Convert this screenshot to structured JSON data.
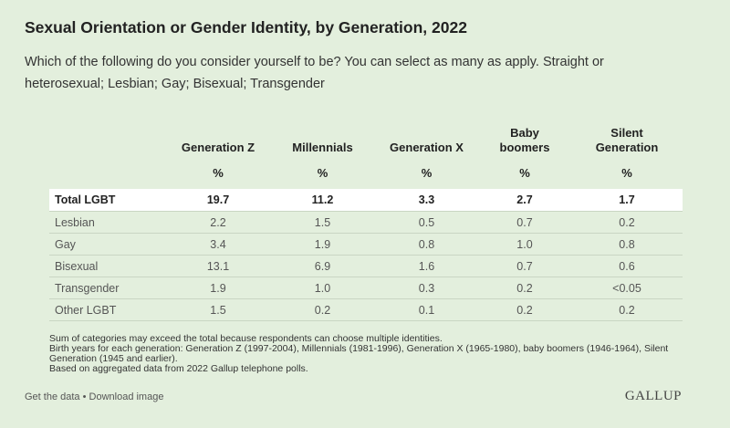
{
  "chart_data": {
    "type": "table",
    "title": "Sexual Orientation or Gender Identity, by Generation, 2022",
    "subtitle": "Which of the following do you consider yourself to be? You can select as many as apply. Straight or heterosexual; Lesbian; Gay; Bisexual; Transgender",
    "columns": [
      {
        "label_line1": "Generation Z",
        "label_line2": "",
        "unit": "%"
      },
      {
        "label_line1": "Millennials",
        "label_line2": "",
        "unit": "%"
      },
      {
        "label_line1": "Generation X",
        "label_line2": "",
        "unit": "%"
      },
      {
        "label_line1": "Baby",
        "label_line2": "boomers",
        "unit": "%"
      },
      {
        "label_line1": "Silent",
        "label_line2": "Generation",
        "unit": "%"
      }
    ],
    "rows": [
      {
        "label": "Total LGBT",
        "values": [
          "19.7",
          "11.2",
          "3.3",
          "2.7",
          "1.7"
        ],
        "highlight": true
      },
      {
        "label": "Lesbian",
        "values": [
          "2.2",
          "1.5",
          "0.5",
          "0.7",
          "0.2"
        ]
      },
      {
        "label": "Gay",
        "values": [
          "3.4",
          "1.9",
          "0.8",
          "1.0",
          "0.8"
        ]
      },
      {
        "label": "Bisexual",
        "values": [
          "13.1",
          "6.9",
          "1.6",
          "0.7",
          "0.6"
        ]
      },
      {
        "label": "Transgender",
        "values": [
          "1.9",
          "1.0",
          "0.3",
          "0.2",
          "<0.05"
        ]
      },
      {
        "label": "Other LGBT",
        "values": [
          "1.5",
          "0.2",
          "0.1",
          "0.2",
          "0.2"
        ]
      }
    ],
    "notes": [
      "Sum of categories may exceed the total because respondents can choose multiple identities.",
      "Birth years for each generation: Generation Z (1997-2004), Millennials (1981-1996), Generation X (1965-1980), baby boomers (1946-1964), Silent Generation (1945 and earlier).",
      "Based on aggregated data from 2022 Gallup telephone polls."
    ]
  },
  "footer": {
    "get_data": "Get the data",
    "separator": " • ",
    "download_image": "Download image",
    "brand": "GALLUP"
  },
  "colors": {
    "background": "#e3efdd",
    "highlight_row": "#ffffff"
  }
}
